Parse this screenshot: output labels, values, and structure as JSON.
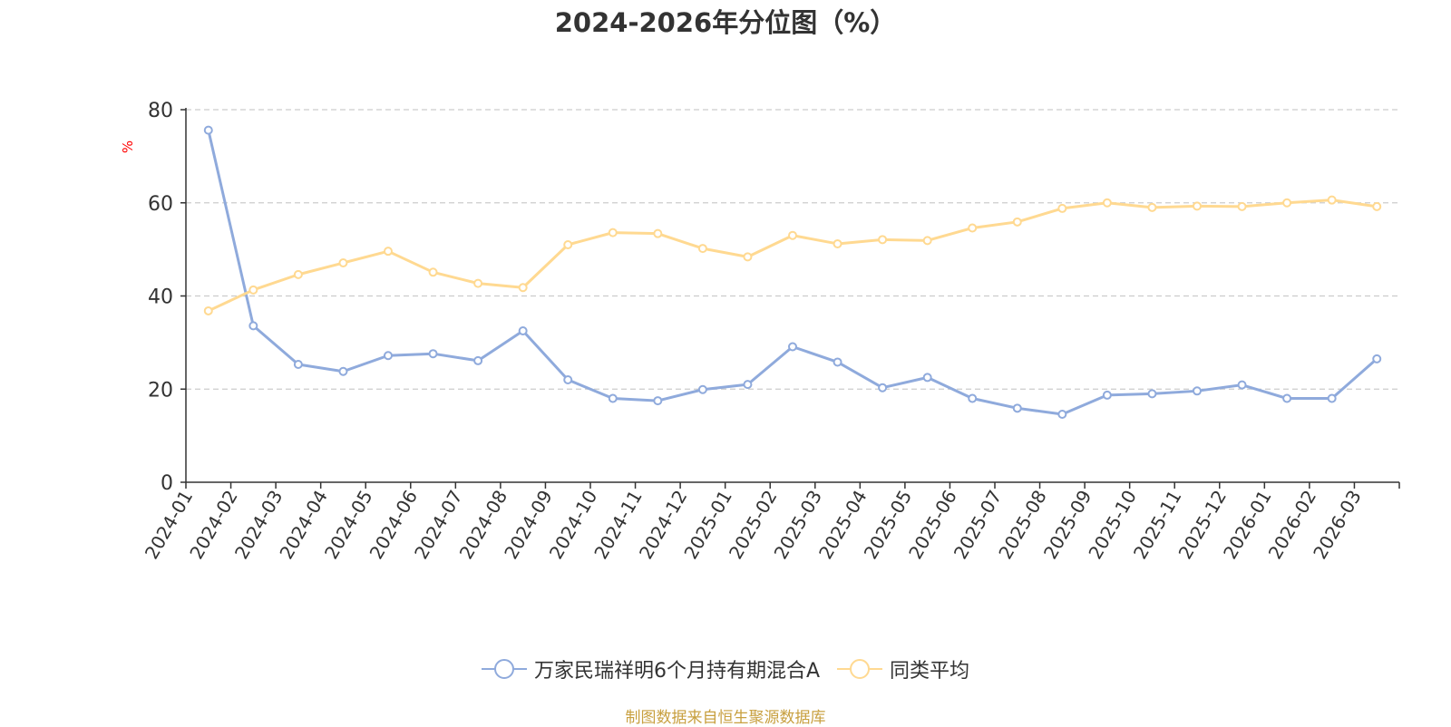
{
  "chart_data": {
    "type": "line",
    "title": "2024-2026年分位图（%）",
    "ylabel": "%",
    "ylim": [
      0,
      80
    ],
    "yticks": [
      "0",
      "20",
      "40",
      "60",
      "80"
    ],
    "grid": true,
    "legend_position": "bottom",
    "categories": [
      "2024-01",
      "2024-02",
      "2024-03",
      "2024-04",
      "2024-05",
      "2024-06",
      "2024-07",
      "2024-08",
      "2024-09",
      "2024-10",
      "2024-11",
      "2024-12",
      "2025-01",
      "2025-02",
      "2025-03",
      "2025-04",
      "2025-05",
      "2025-06",
      "2025-07",
      "2025-08",
      "2025-09",
      "2025-10",
      "2025-11",
      "2025-12",
      "2026-01",
      "2026-02",
      "2026-03"
    ],
    "series": [
      {
        "name": "万家民瑞祥明6个月持有期混合A",
        "color": "#8faadc",
        "values": [
          75.6,
          33.6,
          25.3,
          23.8,
          27.2,
          27.6,
          26.1,
          32.5,
          22.0,
          18.0,
          17.5,
          19.9,
          21.0,
          29.1,
          25.8,
          20.3,
          22.5,
          18.0,
          15.9,
          14.6,
          18.7,
          19.0,
          19.6,
          20.9,
          18.0,
          18.0,
          26.5
        ]
      },
      {
        "name": "同类平均",
        "color": "#ffd991",
        "values": [
          36.8,
          41.3,
          44.6,
          47.1,
          49.6,
          45.1,
          42.7,
          41.8,
          51.0,
          53.6,
          53.4,
          50.2,
          48.4,
          53.0,
          51.2,
          52.1,
          51.9,
          54.6,
          55.9,
          58.8,
          60.0,
          59.0,
          59.3,
          59.2,
          60.0,
          60.6,
          59.2
        ]
      }
    ]
  },
  "source_text": "制图数据来自恒生聚源数据库"
}
